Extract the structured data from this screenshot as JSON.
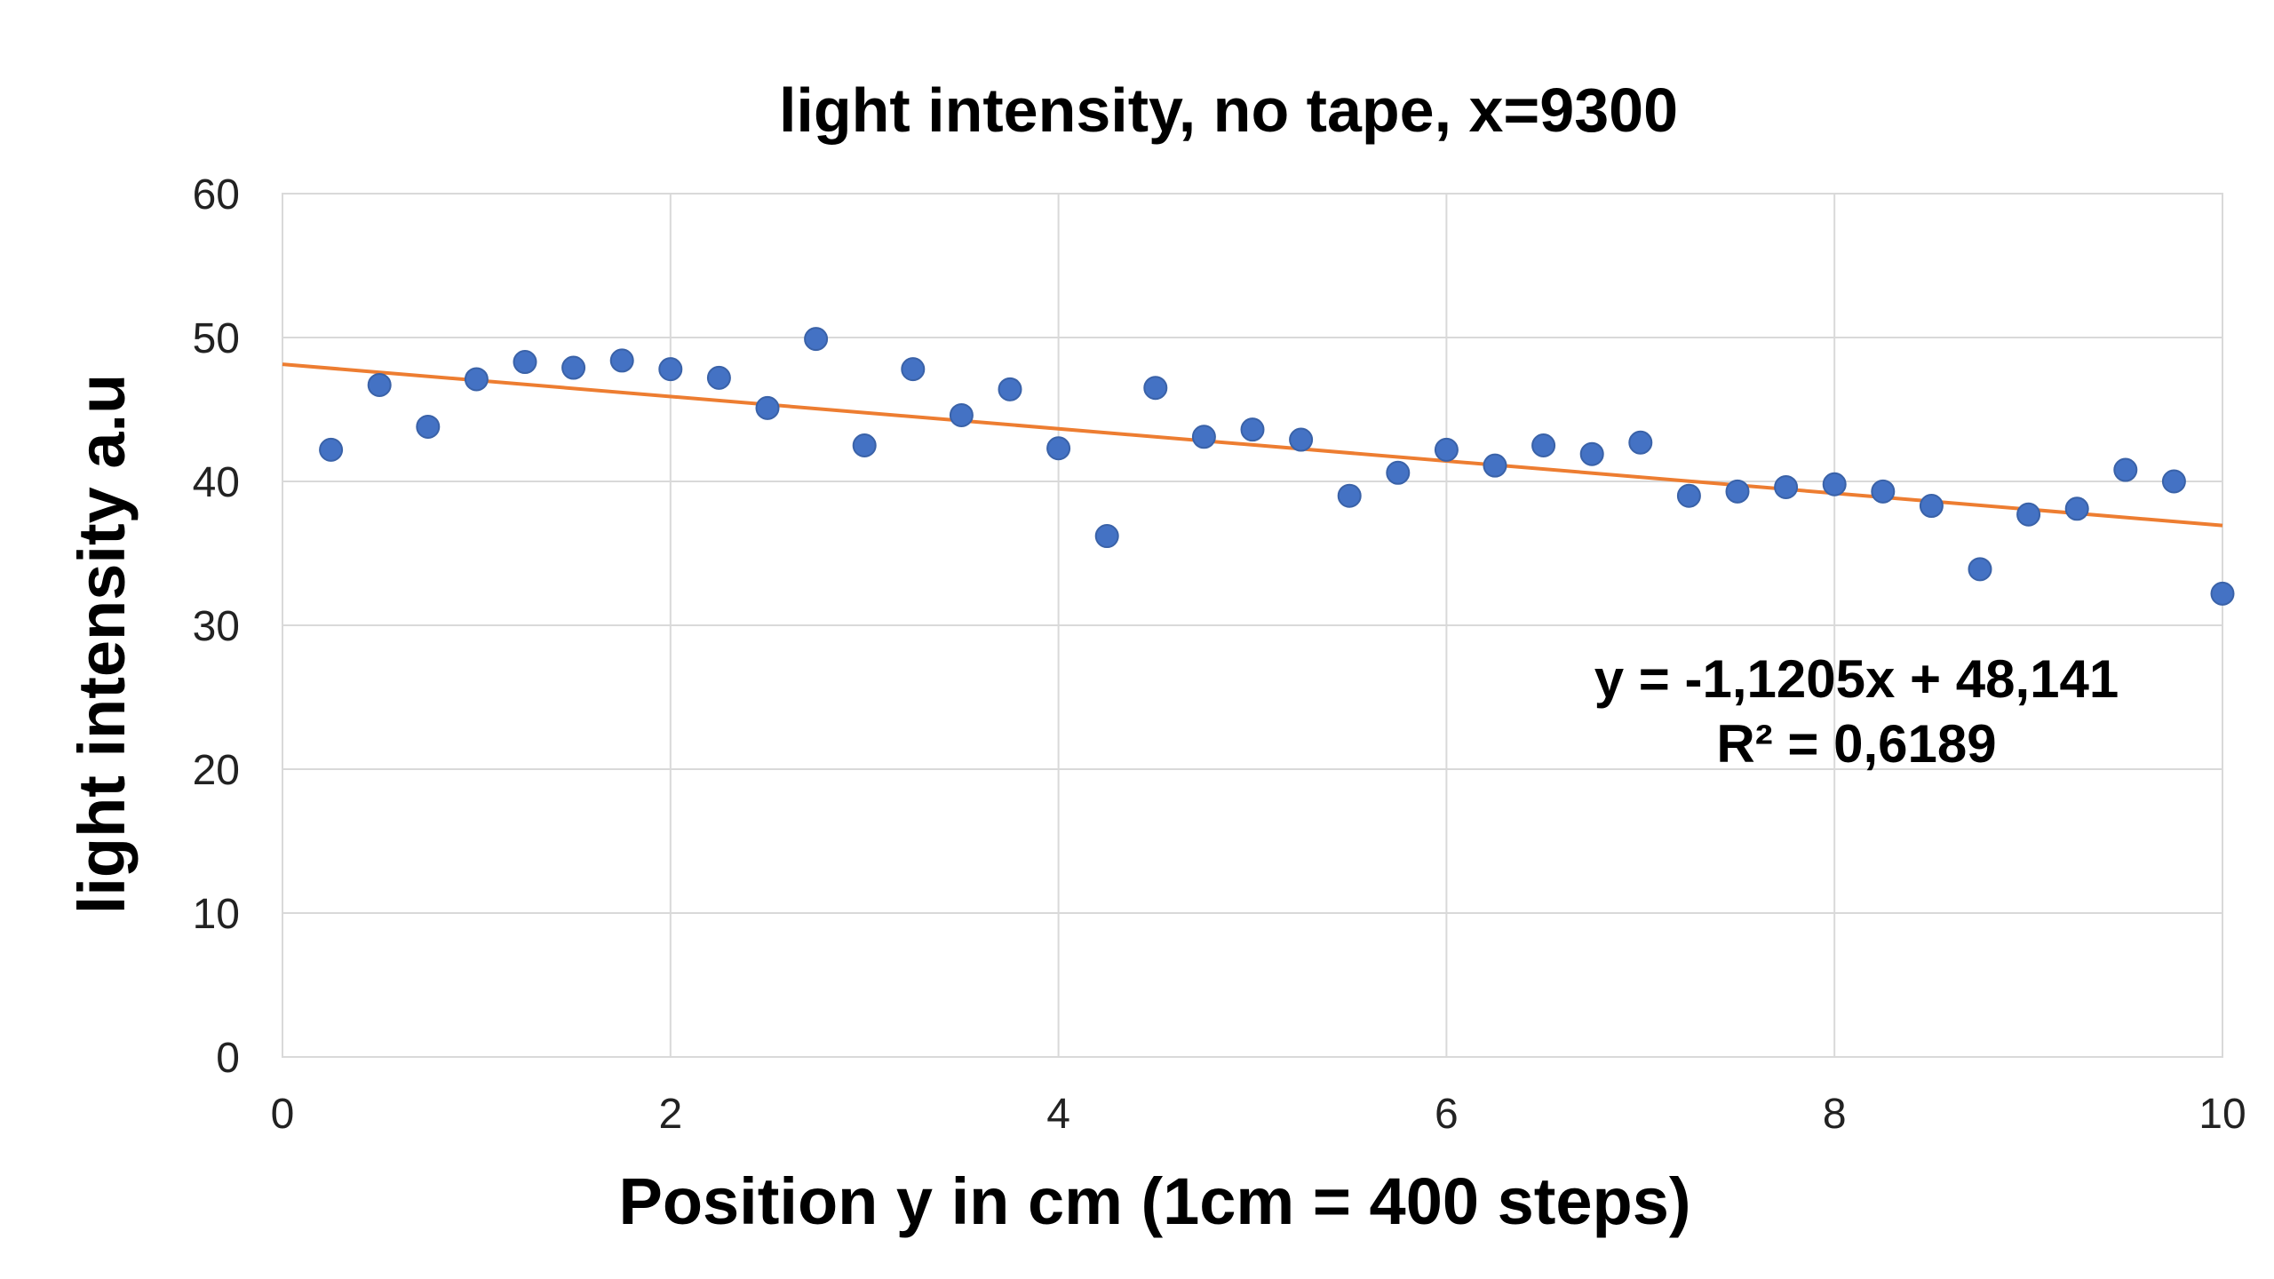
{
  "chart_data": {
    "type": "scatter",
    "title": "light intensity, no tape, x=9300",
    "xlabel": "Position y in cm (1cm = 400 steps)",
    "ylabel": "light intensity  a.u",
    "xlim": [
      0,
      10
    ],
    "ylim": [
      0,
      60
    ],
    "xticks": [
      "0",
      "2",
      "4",
      "6",
      "8",
      "10"
    ],
    "yticks": [
      "0",
      "10",
      "20",
      "30",
      "40",
      "50",
      "60"
    ],
    "grid": true,
    "series": [
      {
        "x": [
          0.25,
          0.5,
          0.75,
          1.0,
          1.25,
          1.5,
          1.75,
          2.0,
          2.25,
          2.5,
          2.75,
          3.0,
          3.25,
          3.5,
          3.75,
          4.0,
          4.25,
          4.5,
          4.75,
          5.0,
          5.25,
          5.5,
          5.75,
          6.0,
          6.25,
          6.5,
          6.75,
          7.0,
          7.25,
          7.5,
          7.75,
          8.0,
          8.25,
          8.5,
          8.75,
          9.0,
          9.25,
          9.5,
          9.75,
          10.0
        ],
        "y": [
          42.2,
          46.7,
          43.8,
          47.1,
          48.3,
          47.9,
          48.4,
          47.8,
          47.2,
          45.1,
          49.9,
          42.5,
          47.8,
          44.6,
          46.4,
          42.3,
          36.2,
          46.5,
          43.1,
          43.6,
          42.9,
          39.0,
          40.6,
          42.2,
          41.1,
          42.5,
          41.9,
          42.7,
          39.0,
          39.3,
          39.6,
          39.8,
          39.3,
          38.3,
          33.9,
          37.7,
          38.1,
          40.8,
          40.0,
          32.2
        ],
        "color": "#4472c4"
      }
    ],
    "trendline": {
      "type": "linear",
      "slope": -1.1205,
      "intercept": 48.141,
      "color": "#ed7d31",
      "equation_label": "y = -1,1205x + 48,141",
      "r2_label": "R² = 0,6189"
    }
  }
}
